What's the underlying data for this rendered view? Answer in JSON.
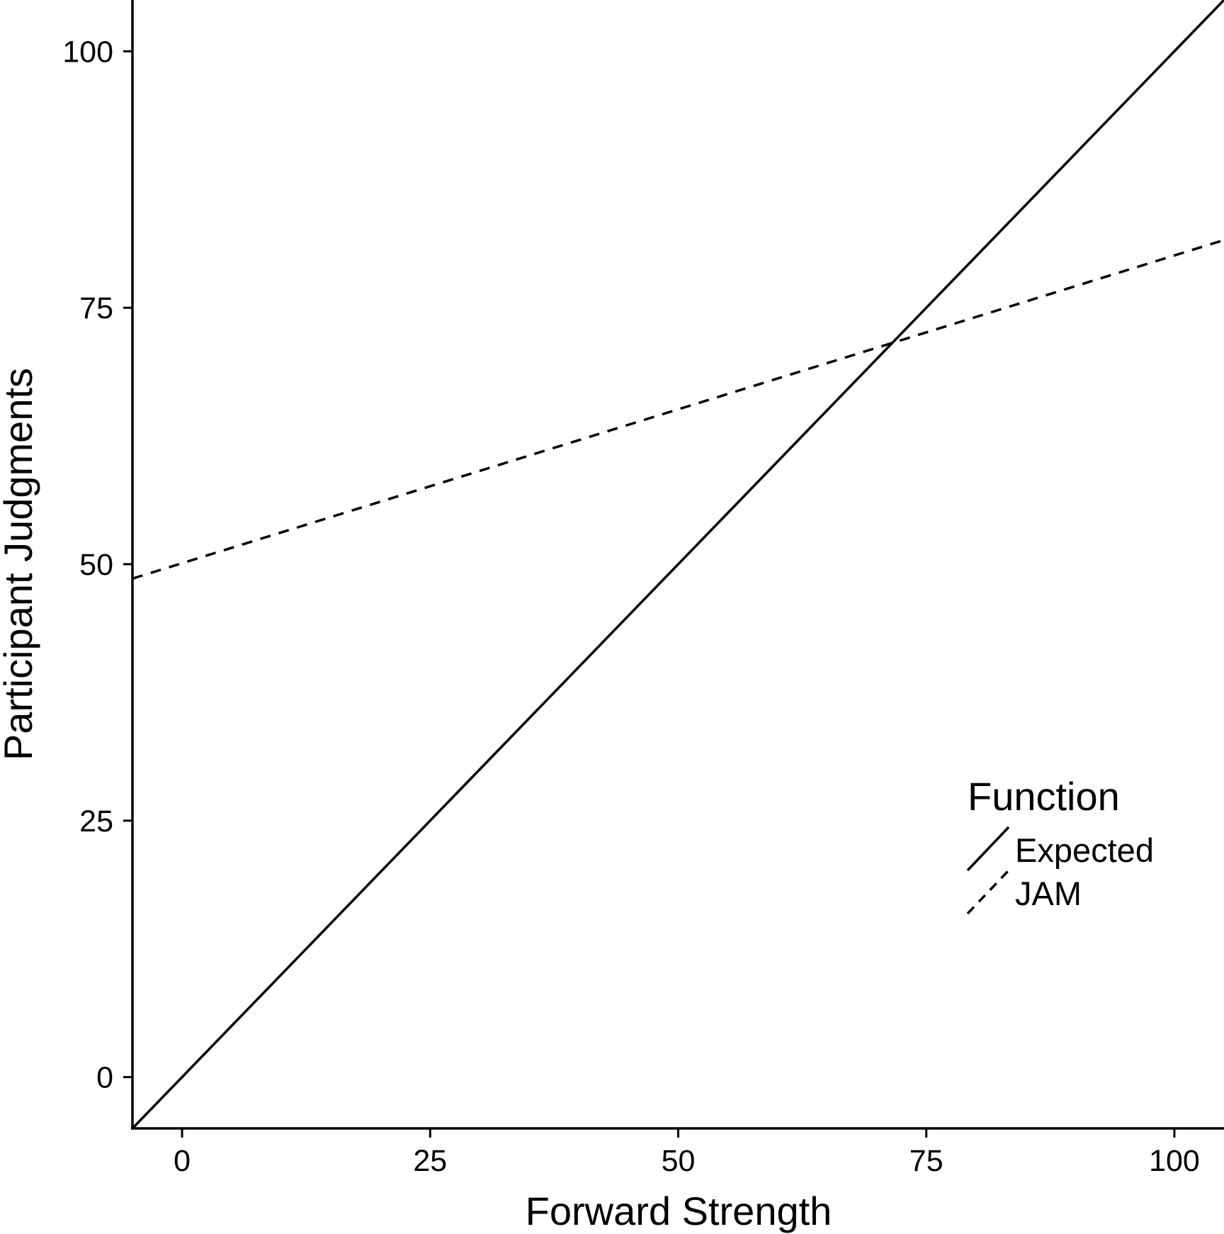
{
  "chart_data": {
    "type": "line",
    "title": "",
    "xlabel": "Forward Strength",
    "ylabel": "Participant Judgments",
    "xlim": [
      -5,
      105
    ],
    "ylim": [
      -5,
      105
    ],
    "xticks": [
      0,
      25,
      50,
      75,
      100
    ],
    "yticks": [
      0,
      25,
      50,
      75,
      100
    ],
    "x_tick_labels": [
      "0",
      "25",
      "50",
      "75",
      "100"
    ],
    "y_tick_labels": [
      "0",
      "25",
      "50",
      "75",
      "100"
    ],
    "grid": false,
    "legend": {
      "title": "Function",
      "position": "lower-right",
      "entries": [
        "Expected",
        "JAM"
      ]
    },
    "series": [
      {
        "name": "Expected",
        "style": "solid",
        "color": "#000000",
        "x": [
          -5,
          105
        ],
        "y": [
          -5,
          105
        ]
      },
      {
        "name": "JAM",
        "style": "dashed",
        "color": "#000000",
        "x": [
          -5,
          105
        ],
        "y": [
          48.6,
          81.6
        ]
      }
    ]
  }
}
